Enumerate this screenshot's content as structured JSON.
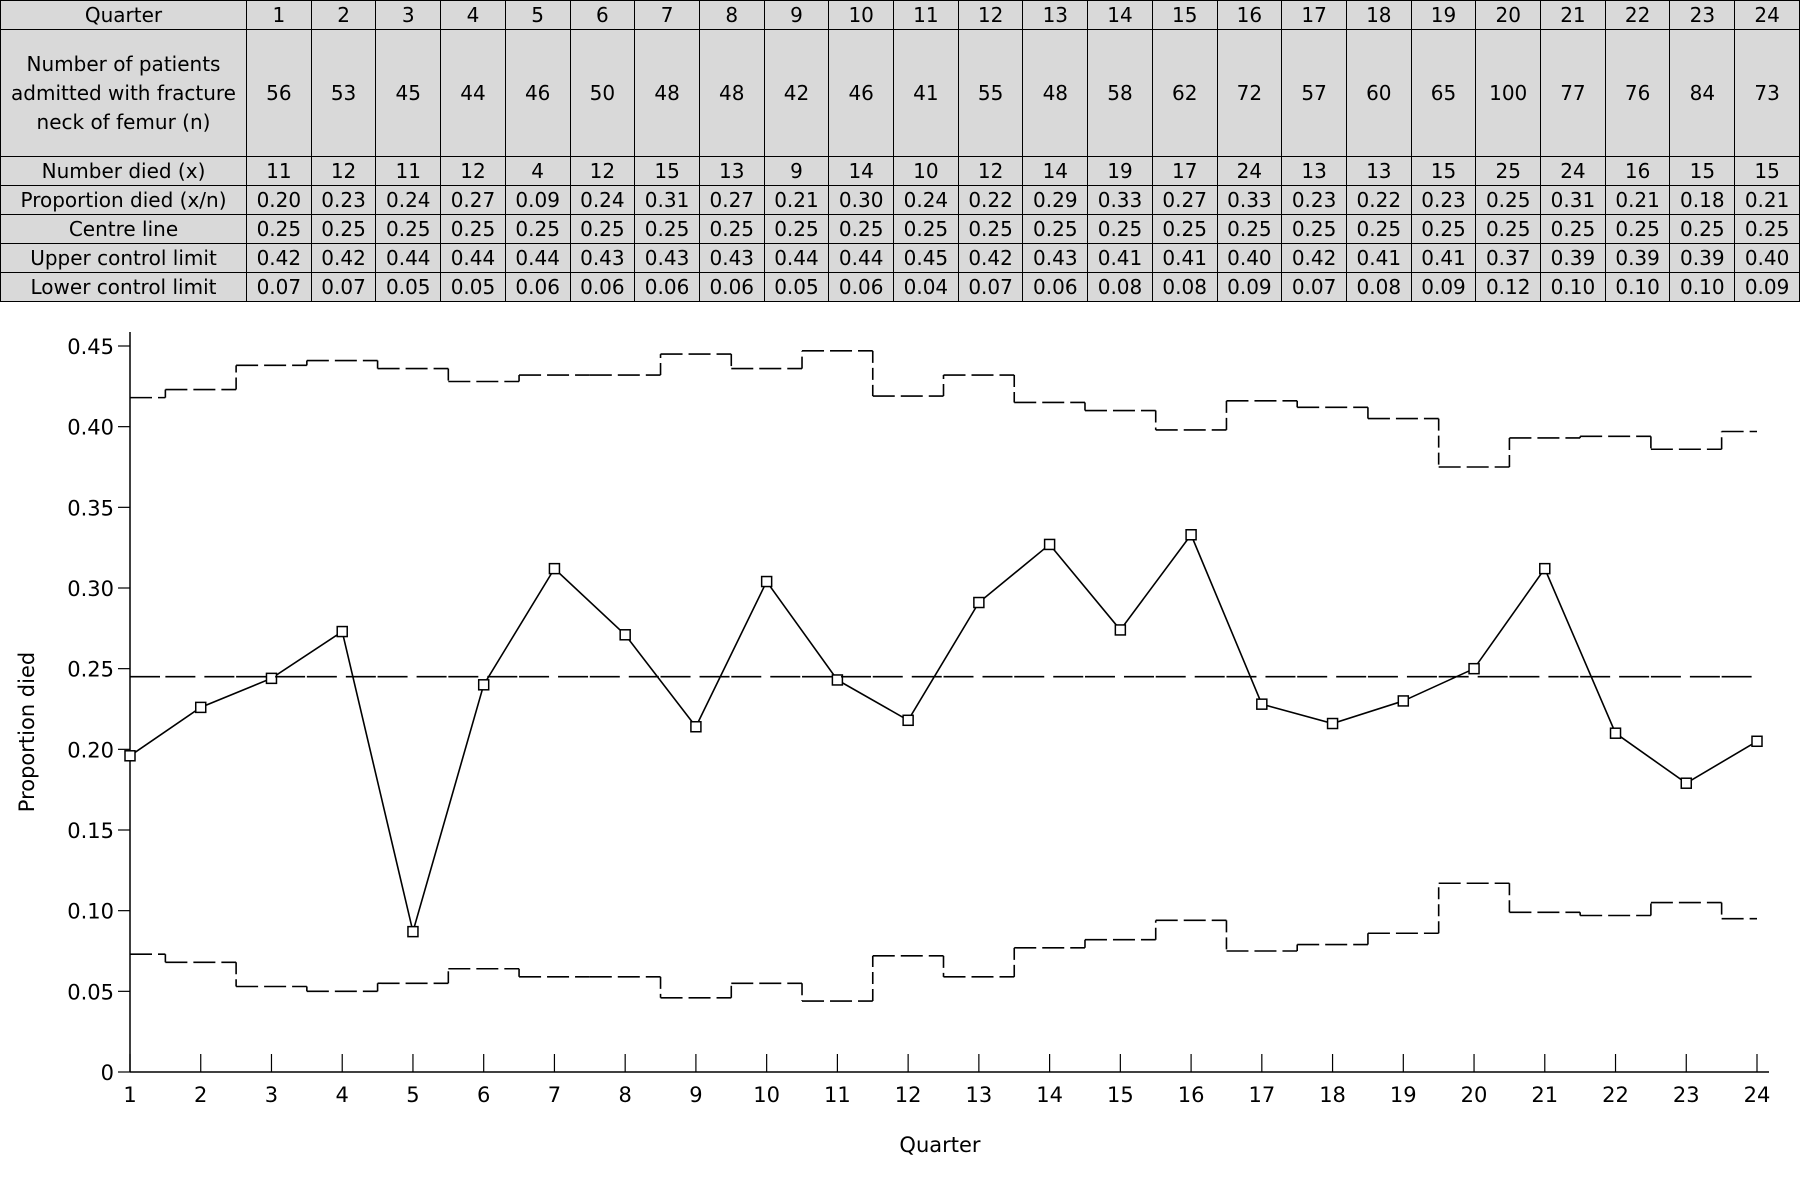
{
  "table": {
    "header": [
      "Quarter",
      "1",
      "2",
      "3",
      "4",
      "5",
      "6",
      "7",
      "8",
      "9",
      "10",
      "11",
      "12",
      "13",
      "14",
      "15",
      "16",
      "17",
      "18",
      "19",
      "20",
      "21",
      "22",
      "23",
      "24"
    ],
    "rows": [
      [
        "Number of patients admitted with fracture neck of femur (n)",
        "56",
        "53",
        "45",
        "44",
        "46",
        "50",
        "48",
        "48",
        "42",
        "46",
        "41",
        "55",
        "48",
        "58",
        "62",
        "72",
        "57",
        "60",
        "65",
        "100",
        "77",
        "76",
        "84",
        "73"
      ],
      [
        "Number died (x)",
        "11",
        "12",
        "11",
        "12",
        "4",
        "12",
        "15",
        "13",
        "9",
        "14",
        "10",
        "12",
        "14",
        "19",
        "17",
        "24",
        "13",
        "13",
        "15",
        "25",
        "24",
        "16",
        "15",
        "15"
      ],
      [
        "Proportion died (x/n)",
        "0.20",
        "0.23",
        "0.24",
        "0.27",
        "0.09",
        "0.24",
        "0.31",
        "0.27",
        "0.21",
        "0.30",
        "0.24",
        "0.22",
        "0.29",
        "0.33",
        "0.27",
        "0.33",
        "0.23",
        "0.22",
        "0.23",
        "0.25",
        "0.31",
        "0.21",
        "0.18",
        "0.21"
      ],
      [
        "Centre line",
        "0.25",
        "0.25",
        "0.25",
        "0.25",
        "0.25",
        "0.25",
        "0.25",
        "0.25",
        "0.25",
        "0.25",
        "0.25",
        "0.25",
        "0.25",
        "0.25",
        "0.25",
        "0.25",
        "0.25",
        "0.25",
        "0.25",
        "0.25",
        "0.25",
        "0.25",
        "0.25",
        "0.25"
      ],
      [
        "Upper control limit",
        "0.42",
        "0.42",
        "0.44",
        "0.44",
        "0.44",
        "0.43",
        "0.43",
        "0.43",
        "0.44",
        "0.44",
        "0.45",
        "0.42",
        "0.43",
        "0.41",
        "0.41",
        "0.40",
        "0.42",
        "0.41",
        "0.41",
        "0.37",
        "0.39",
        "0.39",
        "0.39",
        "0.40"
      ],
      [
        "Lower control limit",
        "0.07",
        "0.07",
        "0.05",
        "0.05",
        "0.06",
        "0.06",
        "0.06",
        "0.06",
        "0.05",
        "0.06",
        "0.04",
        "0.07",
        "0.06",
        "0.08",
        "0.08",
        "0.09",
        "0.07",
        "0.08",
        "0.09",
        "0.12",
        "0.10",
        "0.10",
        "0.10",
        "0.09"
      ]
    ]
  },
  "chart_data": {
    "type": "line",
    "x_label": "Quarter",
    "y_label": "Proportion died",
    "x": [
      1,
      2,
      3,
      4,
      5,
      6,
      7,
      8,
      9,
      10,
      11,
      12,
      13,
      14,
      15,
      16,
      17,
      18,
      19,
      20,
      21,
      22,
      23,
      24
    ],
    "xlim": [
      1,
      24
    ],
    "xticks": [
      1,
      2,
      3,
      4,
      5,
      6,
      7,
      8,
      9,
      10,
      11,
      12,
      13,
      14,
      15,
      16,
      17,
      18,
      19,
      20,
      21,
      22,
      23,
      24
    ],
    "ylim": [
      0,
      0.45
    ],
    "yticks": [
      0,
      0.05,
      {
        "value": 0.1,
        "label": "0.10"
      },
      0.15,
      {
        "value": 0.2,
        "label": "0.20"
      },
      0.25,
      {
        "value": 0.3,
        "label": "0.30"
      },
      0.35,
      {
        "value": 0.4,
        "label": "0.40"
      },
      0.45
    ],
    "series": [
      {
        "color": "#000000",
        "step": false,
        "marker": "square",
        "values": [
          0.196,
          0.226,
          0.244,
          0.273,
          0.087,
          0.24,
          0.312,
          0.271,
          0.214,
          0.304,
          0.243,
          0.218,
          0.291,
          0.327,
          0.274,
          0.333,
          0.228,
          0.216,
          0.23,
          0.25,
          0.312,
          0.21,
          0.179,
          0.205
        ]
      },
      {
        "color": "#000000",
        "step": true,
        "dash": "30 9",
        "values": [
          0.245,
          0.245,
          0.245,
          0.245,
          0.245,
          0.245,
          0.245,
          0.245,
          0.245,
          0.245,
          0.245,
          0.245,
          0.245,
          0.245,
          0.245,
          0.245,
          0.245,
          0.245,
          0.245,
          0.245,
          0.245,
          0.245,
          0.245,
          0.245
        ]
      },
      {
        "color": "#000000",
        "step": true,
        "dash": "22 6",
        "values": [
          0.418,
          0.423,
          0.438,
          0.441,
          0.436,
          0.428,
          0.432,
          0.432,
          0.445,
          0.436,
          0.447,
          0.419,
          0.432,
          0.415,
          0.41,
          0.398,
          0.416,
          0.412,
          0.405,
          0.375,
          0.393,
          0.394,
          0.386,
          0.397
        ]
      },
      {
        "color": "#000000",
        "step": true,
        "dash": "22 6",
        "values": [
          0.073,
          0.068,
          0.053,
          0.05,
          0.055,
          0.064,
          0.059,
          0.059,
          0.046,
          0.055,
          0.044,
          0.072,
          0.059,
          0.077,
          0.082,
          0.094,
          0.075,
          0.079,
          0.086,
          0.117,
          0.099,
          0.097,
          0.105,
          0.095
        ]
      }
    ]
  }
}
